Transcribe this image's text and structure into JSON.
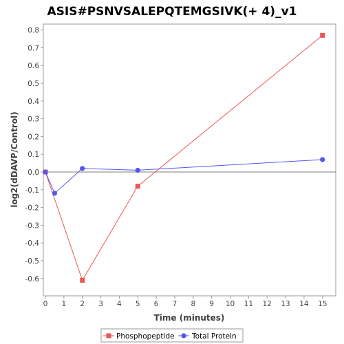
{
  "chart_data": {
    "type": "line",
    "title": "ASIS#PSNVSALEPQTEMGSIVK(+ 4)_v1",
    "xlabel": "Time (minutes)",
    "ylabel": "log2(dDAVP/Control)",
    "xlim": [
      0,
      16
    ],
    "ylim": [
      -0.7,
      0.85
    ],
    "x_ticks": [
      "0",
      "1",
      "2",
      "3",
      "4",
      "5",
      "6",
      "7",
      "8",
      "9",
      "10",
      "11",
      "12",
      "13",
      "14",
      "15"
    ],
    "y_ticks": [
      "0.8",
      "0.7",
      "0.6",
      "0.5",
      "0.4",
      "0.3",
      "0.2",
      "0.1",
      "0.0",
      "-0.1",
      "-0.2",
      "-0.3",
      "-0.4",
      "-0.5",
      "-0.6"
    ],
    "grid": false,
    "legend_position": "bottom",
    "series": [
      {
        "name": "Phosphopeptide",
        "marker": "square",
        "color": "#ee5555",
        "points": [
          [
            0,
            0.0
          ],
          [
            2,
            -0.61
          ],
          [
            5,
            -0.08
          ],
          [
            15,
            0.77
          ]
        ]
      },
      {
        "name": "Total Protein",
        "marker": "circle",
        "color": "#5555ee",
        "points": [
          [
            0,
            0.0
          ],
          [
            0.5,
            -0.12
          ],
          [
            2,
            0.02
          ],
          [
            5,
            0.01
          ],
          [
            15,
            0.07
          ]
        ]
      }
    ]
  }
}
